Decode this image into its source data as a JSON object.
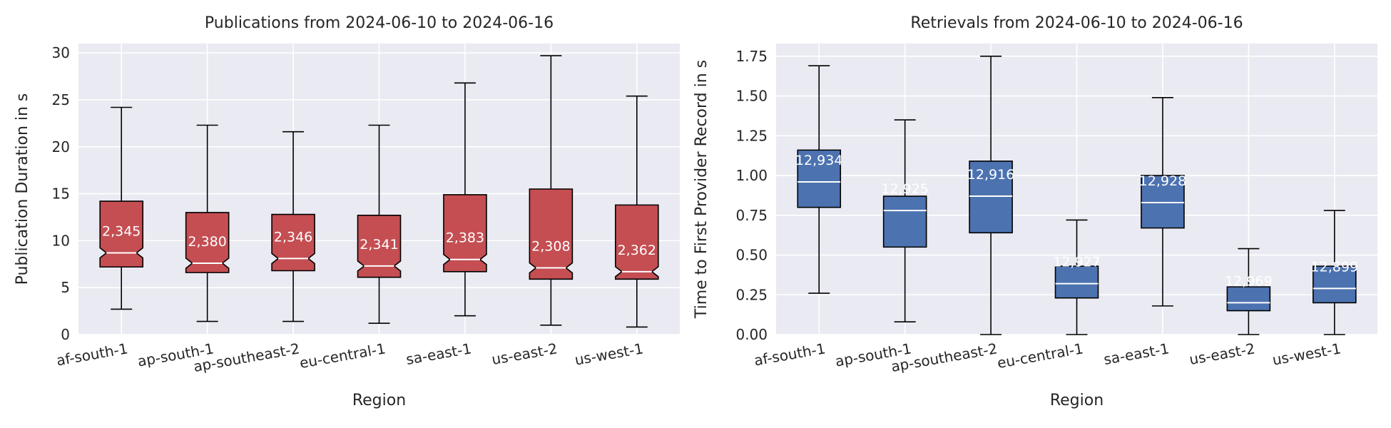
{
  "chart_data": [
    {
      "type": "box",
      "title": "Publications from 2024-06-10 to 2024-06-16",
      "xlabel": "Region",
      "ylabel": "Publication Duration in s",
      "ylim": [
        0,
        31
      ],
      "yticks": [
        0,
        5,
        10,
        15,
        20,
        25,
        30
      ],
      "ytick_labels": [
        "0",
        "5",
        "10",
        "15",
        "20",
        "25",
        "30"
      ],
      "grid": true,
      "notched": true,
      "box_color": "#c44e52",
      "categories": [
        "af-south-1",
        "ap-south-1",
        "ap-southeast-2",
        "eu-central-1",
        "sa-east-1",
        "us-east-2",
        "us-west-1"
      ],
      "boxes": [
        {
          "whislo": 2.7,
          "q1": 7.2,
          "median": 8.7,
          "q3": 14.2,
          "whishi": 24.2,
          "count": "2,345"
        },
        {
          "whislo": 1.4,
          "q1": 6.6,
          "median": 7.6,
          "q3": 13.0,
          "whishi": 22.3,
          "count": "2,380"
        },
        {
          "whislo": 1.4,
          "q1": 6.8,
          "median": 8.1,
          "q3": 12.8,
          "whishi": 21.6,
          "count": "2,346"
        },
        {
          "whislo": 1.2,
          "q1": 6.1,
          "median": 7.3,
          "q3": 12.7,
          "whishi": 22.3,
          "count": "2,341"
        },
        {
          "whislo": 2.0,
          "q1": 6.7,
          "median": 8.0,
          "q3": 14.9,
          "whishi": 26.8,
          "count": "2,383"
        },
        {
          "whislo": 1.0,
          "q1": 5.9,
          "median": 7.1,
          "q3": 15.5,
          "whishi": 29.7,
          "count": "2,308"
        },
        {
          "whislo": 0.8,
          "q1": 5.9,
          "median": 6.7,
          "q3": 13.8,
          "whishi": 25.4,
          "count": "2,362"
        }
      ]
    },
    {
      "type": "box",
      "title": "Retrievals from 2024-06-10 to 2024-06-16",
      "xlabel": "Region",
      "ylabel": "Time to First Provider Record in s",
      "ylim": [
        0,
        1.83
      ],
      "yticks": [
        0,
        0.25,
        0.5,
        0.75,
        1.0,
        1.25,
        1.5,
        1.75
      ],
      "ytick_labels": [
        "0.00",
        "0.25",
        "0.50",
        "0.75",
        "1.00",
        "1.25",
        "1.50",
        "1.75"
      ],
      "grid": true,
      "notched": false,
      "box_color": "#4c72b0",
      "categories": [
        "af-south-1",
        "ap-south-1",
        "ap-southeast-2",
        "eu-central-1",
        "sa-east-1",
        "us-east-2",
        "us-west-1"
      ],
      "boxes": [
        {
          "whislo": 0.26,
          "q1": 0.8,
          "median": 0.96,
          "q3": 1.16,
          "whishi": 1.69,
          "count": "12,934"
        },
        {
          "whislo": 0.08,
          "q1": 0.55,
          "median": 0.78,
          "q3": 0.87,
          "whishi": 1.35,
          "count": "12,925"
        },
        {
          "whislo": 0.0,
          "q1": 0.64,
          "median": 0.87,
          "q3": 1.09,
          "whishi": 1.75,
          "count": "12,916"
        },
        {
          "whislo": 0.0,
          "q1": 0.23,
          "median": 0.32,
          "q3": 0.43,
          "whishi": 0.72,
          "count": "12,927"
        },
        {
          "whislo": 0.18,
          "q1": 0.67,
          "median": 0.83,
          "q3": 1.0,
          "whishi": 1.49,
          "count": "12,928"
        },
        {
          "whislo": 0.0,
          "q1": 0.15,
          "median": 0.2,
          "q3": 0.3,
          "whishi": 0.54,
          "count": "12,969"
        },
        {
          "whislo": 0.0,
          "q1": 0.2,
          "median": 0.29,
          "q3": 0.43,
          "whishi": 0.78,
          "count": "12,899"
        }
      ]
    }
  ]
}
